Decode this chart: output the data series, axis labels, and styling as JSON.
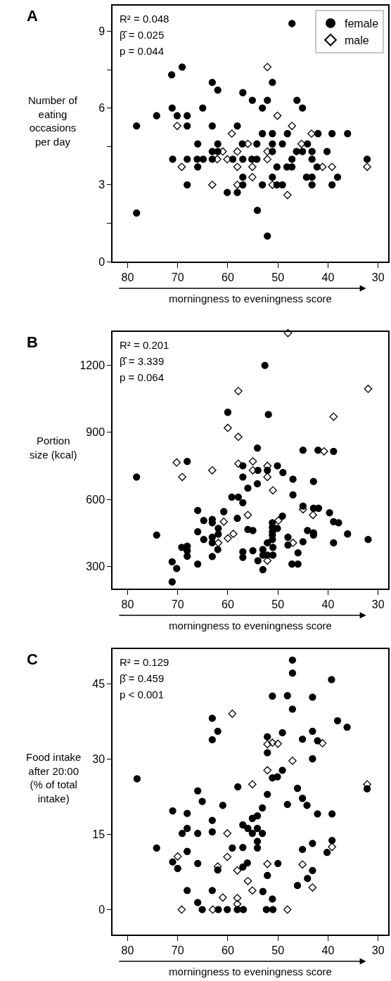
{
  "chart_data": [
    {
      "type": "scatter",
      "title": "A",
      "ylabel": "Number of eating occasions per day",
      "xlabel": "morningness to eveningness score",
      "annotations": [
        "R² = 0.048",
        "β̂ = 0.025",
        "p = 0.044"
      ],
      "xlim": [
        83,
        28
      ],
      "xticks": [
        80,
        70,
        60,
        50,
        40,
        30
      ],
      "ylim": [
        0,
        10
      ],
      "yticks": [
        0,
        {
          "value": 1.5,
          "label": null
        },
        3,
        {
          "value": 4.5,
          "label": null
        },
        6,
        {
          "value": 7.5,
          "label": null
        },
        9
      ],
      "legend": "top right",
      "series": [
        {
          "name": "female",
          "color": "#000000",
          "marker": "circle",
          "x": [
            47.2,
            71.2,
            69.1,
            63.1,
            62.0,
            57.0,
            51.1,
            55.1,
            52.1,
            46.2,
            53.1,
            45.1,
            71.1,
            65.0,
            74.2,
            70.1,
            68.1,
            78.2,
            68.1,
            63.1,
            58.1,
            53.1,
            51.1,
            48.1,
            42.0,
            39.2,
            36.1,
            66.0,
            62.0,
            57.1,
            54.2,
            51.1,
            49.1,
            44.1,
            63.1,
            62.0,
            51.1,
            46.3,
            45.1,
            43.2,
            40.2,
            71.0,
            68.1,
            66.1,
            64.9,
            63.1,
            59.0,
            57.0,
            55.2,
            54.2,
            47.2,
            43.2,
            32.2,
            66.0,
            50.2,
            48.2,
            47.2,
            42.2,
            57.0,
            51.1,
            44.3,
            43.2,
            38.1,
            68.1,
            57.0,
            53.1,
            50.2,
            49.1,
            43.2,
            39.2,
            60.1,
            58.1,
            78.2,
            54.1,
            52.1
          ],
          "values": [
            9.3,
            7.3,
            7.6,
            7.0,
            6.7,
            6.6,
            7.0,
            6.3,
            6.3,
            6.3,
            6.0,
            6.0,
            6.0,
            6.0,
            5.7,
            5.7,
            5.7,
            5.3,
            5.3,
            5.3,
            5.3,
            5.0,
            5.0,
            5.0,
            5.0,
            5.0,
            5.0,
            4.6,
            4.6,
            4.6,
            4.6,
            4.6,
            4.6,
            4.6,
            4.3,
            4.3,
            4.3,
            4.3,
            4.3,
            4.3,
            4.3,
            4.0,
            4.0,
            4.0,
            4.0,
            4.0,
            4.0,
            4.0,
            4.0,
            4.0,
            4.0,
            4.0,
            4.0,
            3.7,
            3.7,
            3.7,
            3.7,
            3.7,
            3.3,
            3.3,
            3.3,
            3.3,
            3.3,
            3.0,
            3.0,
            3.0,
            3.0,
            3.0,
            3.0,
            3.0,
            2.7,
            2.7,
            1.9,
            2.0,
            1.0
          ]
        },
        {
          "name": "male",
          "color": "#000000",
          "marker": "diamond",
          "x": [
            52.1,
            50.1,
            47.2,
            70.1,
            59.2,
            43.3,
            56.0,
            45.3,
            61.0,
            58.1,
            52.1,
            62.1,
            60.1,
            52.1,
            69.2,
            58.1,
            55.1,
            41.1,
            39.2,
            32.2,
            55.1,
            63.1,
            58.1,
            51.1,
            48.1
          ],
          "values": [
            7.6,
            5.7,
            5.3,
            5.3,
            5.0,
            5.0,
            4.6,
            4.6,
            4.3,
            4.3,
            4.3,
            4.0,
            4.0,
            4.0,
            3.7,
            3.7,
            3.7,
            3.7,
            3.7,
            3.7,
            3.3,
            3.0,
            3.0,
            3.0,
            2.6
          ]
        }
      ]
    },
    {
      "type": "scatter",
      "title": "B",
      "ylabel": "Portion size (kcal)",
      "xlabel": "morningness to eveningness score",
      "annotations": [
        "R² = 0.201",
        "β̂ = 3.339",
        "p = 0.064"
      ],
      "xlim": [
        83,
        28
      ],
      "xticks": [
        80,
        70,
        60,
        50,
        40,
        30
      ],
      "ylim": [
        200,
        1350
      ],
      "yticks": [
        300,
        600,
        900,
        1200
      ],
      "series": [
        {
          "color": "#000000",
          "marker": "circle",
          "x": [
            52.6,
            60.0,
            51.9,
            54.1,
            45.0,
            42.0,
            38.9,
            68.1,
            78.2,
            57.0,
            54.0,
            52.1,
            50.1,
            49.0,
            57.0,
            47.0,
            42.9,
            54.1,
            56.0,
            47.0,
            59.2,
            57.9,
            57.0,
            45.0,
            42.9,
            41.9,
            66.0,
            60.8,
            39.7,
            49.1,
            58.1,
            64.8,
            63.1,
            63.1,
            38.9,
            37.9,
            51.1,
            61.9,
            51.1,
            50.1,
            56.0,
            55.0,
            66.0,
            51.1,
            44.1,
            42.9,
            42.9,
            51.1,
            36.1,
            74.2,
            61.9,
            63.1,
            48.0,
            32.0,
            64.8,
            51.1,
            45.0,
            63.1,
            48.0,
            38.9,
            69.2,
            68.1,
            68.1,
            52.1,
            62.0,
            53.0,
            51.0,
            57.0,
            55.0,
            46.0,
            53.0,
            52.1,
            51.0,
            68.1,
            63.1,
            57.0,
            54.0,
            71.1,
            66.0,
            47.2,
            46.0,
            70.2,
            53.0,
            71.1
          ],
          "values": [
            1200,
            990,
            980,
            830,
            820,
            820,
            815,
            770,
            700,
            750,
            730,
            730,
            750,
            720,
            700,
            690,
            680,
            670,
            650,
            620,
            610,
            610,
            585,
            570,
            560,
            560,
            550,
            545,
            540,
            525,
            515,
            505,
            510,
            495,
            500,
            495,
            495,
            470,
            475,
            470,
            465,
            460,
            455,
            455,
            460,
            450,
            440,
            440,
            445,
            440,
            444,
            430,
            430,
            420,
            420,
            420,
            410,
            405,
            395,
            405,
            385,
            390,
            370,
            405,
            375,
            375,
            385,
            365,
            370,
            360,
            350,
            350,
            350,
            345,
            344,
            340,
            325,
            320,
            310,
            310,
            310,
            290,
            285,
            230
          ]
        },
        {
          "color": "#000000",
          "marker": "diamond",
          "x": [
            48.0,
            57.9,
            32.0,
            38.9,
            60.0,
            57.9,
            40.8,
            70.2,
            55.0,
            57.9,
            52.1,
            63.1,
            55.0,
            69.1,
            52.1,
            51.0,
            45.0,
            43.0,
            56.0,
            60.8,
            49.9,
            58.9,
            60.0,
            61.9,
            47.0,
            52.1
          ],
          "values": [
            1345,
            1085,
            1095,
            970,
            920,
            880,
            815,
            765,
            770,
            760,
            750,
            730,
            730,
            700,
            700,
            640,
            555,
            530,
            530,
            500,
            505,
            445,
            425,
            405,
            405,
            325
          ]
        }
      ]
    },
    {
      "type": "scatter",
      "title": "C",
      "ylabel": "Food intake after 20:00 (% of total intake)",
      "xlabel": "morningness to eveningness score",
      "annotations": [
        "R² = 0.129",
        "β̂ = 0.459",
        "p < 0.001"
      ],
      "xlim": [
        83,
        28
      ],
      "xticks": [
        80,
        70,
        60,
        50,
        40,
        30
      ],
      "ylim": [
        -5,
        52
      ],
      "yticks": [
        0,
        15,
        30,
        45
      ],
      "series": [
        {
          "color": "#000000",
          "marker": "circle",
          "x": [
            47.1,
            47.1,
            39.3,
            51.1,
            48.1,
            43.1,
            47.1,
            63.1,
            38.1,
            36.2,
            62.0,
            43.1,
            49.1,
            63.1,
            52.1,
            45.1,
            42.1,
            52.1,
            43.1,
            49.1,
            51.1,
            50.1,
            78.1,
            58.0,
            32.2,
            46.1,
            52.1,
            66.0,
            45.1,
            65.1,
            44.2,
            61.0,
            48.1,
            53.1,
            71.0,
            68.1,
            42.1,
            39.2,
            54.1,
            55.1,
            63.1,
            57.0,
            56.0,
            54.1,
            68.1,
            69.1,
            66.0,
            63.1,
            55.1,
            53.1,
            39.2,
            54.1,
            43.1,
            74.2,
            59.1,
            57.0,
            54.1,
            45.1,
            40.2,
            68.1,
            71.0,
            70.0,
            66.0,
            62.0,
            57.0,
            56.1,
            50.0,
            43.1,
            52.1,
            44.1,
            46.1,
            68.1,
            63.1,
            53.0,
            51.1,
            66.0,
            65.1,
            61.9,
            60.1,
            58.1,
            56.9,
            52.3,
            51.0
          ],
          "values": [
            49.8,
            47.2,
            45.9,
            42.6,
            42.7,
            42.4,
            40.0,
            38.2,
            37.7,
            36.4,
            35.6,
            35.6,
            35.3,
            33.9,
            34.5,
            34.0,
            33.7,
            31.3,
            30.1,
            27.8,
            26.3,
            26.5,
            26.1,
            24.5,
            24.1,
            24.2,
            23.0,
            23.7,
            22.2,
            21.6,
            20.8,
            20.8,
            21.0,
            20.3,
            19.7,
            19.2,
            19.1,
            19.1,
            18.7,
            18.2,
            17.8,
            16.9,
            16.2,
            16.2,
            16.2,
            15.2,
            15.2,
            15.5,
            15.2,
            15.2,
            13.8,
            13.6,
            13.2,
            12.3,
            12.3,
            12.4,
            12.3,
            12.0,
            11.4,
            11.6,
            9.5,
            8.2,
            9.2,
            7.9,
            8.5,
            9.3,
            9.2,
            7.8,
            6.8,
            6.2,
            4.8,
            3.8,
            3.8,
            3.6,
            2.1,
            1.4,
            0,
            0,
            0,
            0,
            0,
            0,
            0
          ]
        },
        {
          "color": "#000000",
          "marker": "diamond",
          "x": [
            59.1,
            52.1,
            51.1,
            50.0,
            41.1,
            47.1,
            52.1,
            55.1,
            32.2,
            60.1,
            70.0,
            60.1,
            62.0,
            52.1,
            45.1,
            39.2,
            58.1,
            56.0,
            55.1,
            43.1,
            61.0,
            58.1,
            58.1,
            69.2,
            63.0,
            48.1
          ],
          "values": [
            39.1,
            33.0,
            33.3,
            33.1,
            33.2,
            29.7,
            27.8,
            25.0,
            25.0,
            15.2,
            10.6,
            10.5,
            8.6,
            9.1,
            9.0,
            12.5,
            7.8,
            5.7,
            3.8,
            4.4,
            2.4,
            2.3,
            1.1,
            0,
            0,
            0
          ]
        }
      ]
    }
  ]
}
